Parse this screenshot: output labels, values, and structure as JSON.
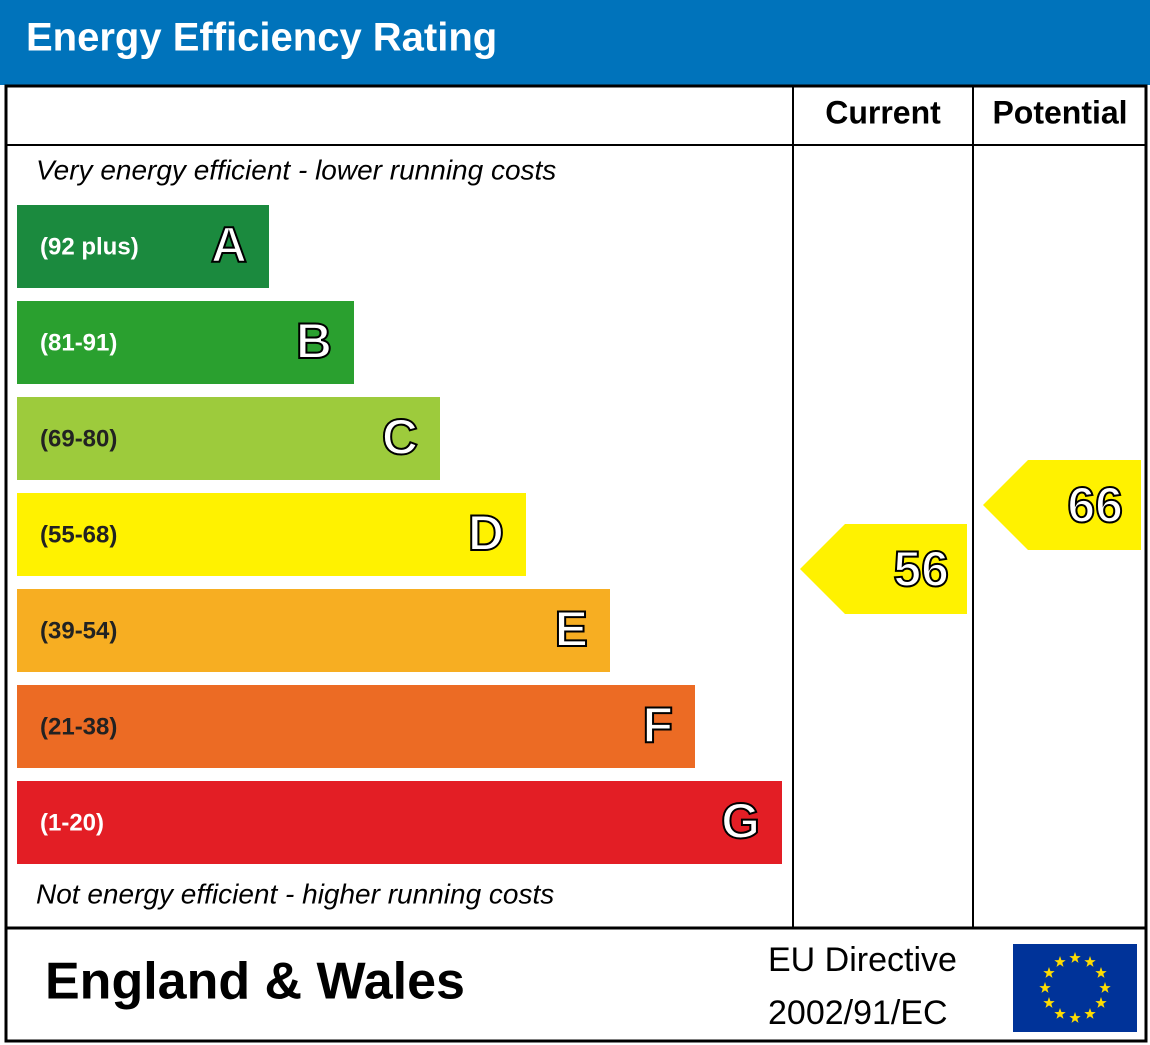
{
  "header": {
    "title": "Energy Efficiency Rating"
  },
  "columns": {
    "current": "Current",
    "potential": "Potential"
  },
  "top_note": "Very energy efficient - lower running costs",
  "bottom_note": "Not energy efficient - higher running costs",
  "bands": [
    {
      "range": "(92 plus)",
      "letter": "A",
      "color": "#1b8a3e"
    },
    {
      "range": "(81-91)",
      "letter": "B",
      "color": "#2aa02f"
    },
    {
      "range": "(69-80)",
      "letter": "C",
      "color": "#9dcb3c"
    },
    {
      "range": "(55-68)",
      "letter": "D",
      "color": "#fff200"
    },
    {
      "range": "(39-54)",
      "letter": "E",
      "color": "#f7ae22"
    },
    {
      "range": "(21-38)",
      "letter": "F",
      "color": "#ec6b24"
    },
    {
      "range": "(1-20)",
      "letter": "G",
      "color": "#e31e25"
    }
  ],
  "current": 56,
  "potential": 66,
  "pointer_color": "#fff200",
  "footer": {
    "region": "England & Wales",
    "directive": [
      "EU Directive",
      "2002/91/EC"
    ]
  }
}
